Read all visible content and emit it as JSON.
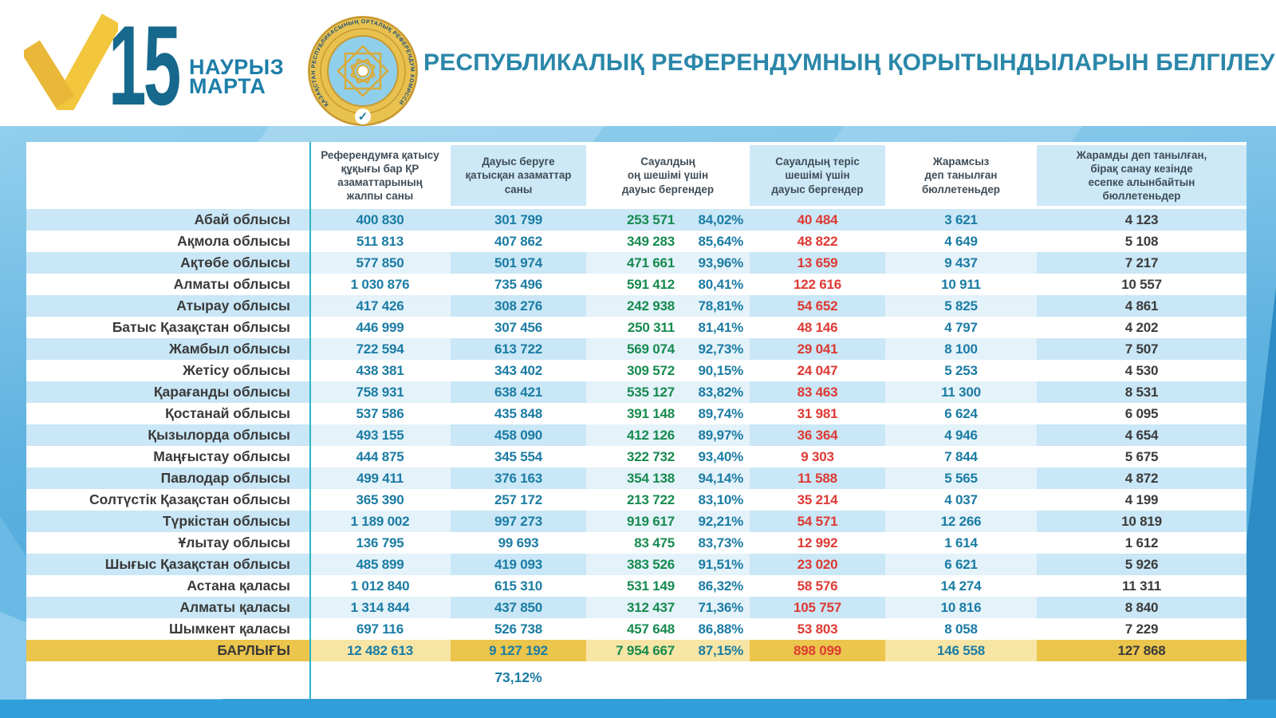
{
  "page": {
    "logo": {
      "day": "15",
      "month_kk": "НАУРЫЗ",
      "month_ru": "МАРТА"
    },
    "emblem_ring_text": "ҚАЗАҚСТАН РЕСПУБЛИКАСЫНЫҢ ОРТАЛЫҚ РЕФЕРЕНДУМ КОМИССИЯСЫ",
    "title": "РЕСПУБЛИКАЛЫҚ РЕФЕРЕНДУМНЫҢ ҚОРЫТЫНДЫЛАРЫН БЕЛГІЛЕУ"
  },
  "colors": {
    "accent_teal": "#1b7ca4",
    "positive_green": "#168a4f",
    "negative_red": "#dd3a33",
    "row_blue": "#c9e7f6",
    "row_blue_light": "#e4f2fa",
    "total_gold_dark": "#ebc54c",
    "total_gold_light": "#f7e5a5",
    "divider_cyan": "#2ab4c9",
    "page_blue": "#3f9fd6"
  },
  "table": {
    "columns": [
      "Референдумға қатысу\nқұқығы бар ҚР\nазаматтарының\nжалпы саны",
      "Дауыс беруге\nқатысқан азаматтар\nсаны",
      "Сауалдың\nоң шешімі үшін\nдауыс бергендер",
      "Сауалдың теріс\nшешімі үшін\nдауыс бергендер",
      "Жарамсыз\nдеп танылған\nбюллетеньдер",
      "Жарамды деп танылған,\nбірақ санау кезінде\nесепке алынбайтын\nбюллетеньдер"
    ],
    "rows": [
      {
        "name": "Абай облысы",
        "eligible": "400 830",
        "voted": "301 799",
        "yes": "253 571",
        "yes_pct": "84,02%",
        "no": "40 484",
        "invalid": "3 621",
        "uncounted": "4 123"
      },
      {
        "name": "Ақмола облысы",
        "eligible": "511 813",
        "voted": "407 862",
        "yes": "349 283",
        "yes_pct": "85,64%",
        "no": "48 822",
        "invalid": "4 649",
        "uncounted": "5 108"
      },
      {
        "name": "Ақтөбе облысы",
        "eligible": "577 850",
        "voted": "501 974",
        "yes": "471 661",
        "yes_pct": "93,96%",
        "no": "13 659",
        "invalid": "9 437",
        "uncounted": "7 217"
      },
      {
        "name": "Алматы облысы",
        "eligible": "1 030 876",
        "voted": "735 496",
        "yes": "591 412",
        "yes_pct": "80,41%",
        "no": "122 616",
        "invalid": "10 911",
        "uncounted": "10 557"
      },
      {
        "name": "Атырау облысы",
        "eligible": "417 426",
        "voted": "308 276",
        "yes": "242 938",
        "yes_pct": "78,81%",
        "no": "54 652",
        "invalid": "5 825",
        "uncounted": "4 861"
      },
      {
        "name": "Батыс Қазақстан облысы",
        "eligible": "446 999",
        "voted": "307 456",
        "yes": "250 311",
        "yes_pct": "81,41%",
        "no": "48 146",
        "invalid": "4 797",
        "uncounted": "4 202"
      },
      {
        "name": "Жамбыл облысы",
        "eligible": "722 594",
        "voted": "613 722",
        "yes": "569 074",
        "yes_pct": "92,73%",
        "no": "29 041",
        "invalid": "8 100",
        "uncounted": "7 507"
      },
      {
        "name": "Жетісу облысы",
        "eligible": "438 381",
        "voted": "343 402",
        "yes": "309 572",
        "yes_pct": "90,15%",
        "no": "24 047",
        "invalid": "5 253",
        "uncounted": "4 530"
      },
      {
        "name": "Қарағанды облысы",
        "eligible": "758 931",
        "voted": "638 421",
        "yes": "535 127",
        "yes_pct": "83,82%",
        "no": "83 463",
        "invalid": "11 300",
        "uncounted": "8 531"
      },
      {
        "name": "Қостанай облысы",
        "eligible": "537 586",
        "voted": "435 848",
        "yes": "391 148",
        "yes_pct": "89,74%",
        "no": "31 981",
        "invalid": "6 624",
        "uncounted": "6 095"
      },
      {
        "name": "Қызылорда облысы",
        "eligible": "493 155",
        "voted": "458 090",
        "yes": "412 126",
        "yes_pct": "89,97%",
        "no": "36 364",
        "invalid": "4 946",
        "uncounted": "4 654"
      },
      {
        "name": "Маңғыстау облысы",
        "eligible": "444 875",
        "voted": "345 554",
        "yes": "322 732",
        "yes_pct": "93,40%",
        "no": "9 303",
        "invalid": "7 844",
        "uncounted": "5 675"
      },
      {
        "name": "Павлодар облысы",
        "eligible": "499 411",
        "voted": "376 163",
        "yes": "354 138",
        "yes_pct": "94,14%",
        "no": "11 588",
        "invalid": "5 565",
        "uncounted": "4 872"
      },
      {
        "name": "Солтүстік Қазақстан облысы",
        "eligible": "365 390",
        "voted": "257 172",
        "yes": "213 722",
        "yes_pct": "83,10%",
        "no": "35 214",
        "invalid": "4 037",
        "uncounted": "4 199"
      },
      {
        "name": "Түркістан облысы",
        "eligible": "1 189 002",
        "voted": "997 273",
        "yes": "919 617",
        "yes_pct": "92,21%",
        "no": "54 571",
        "invalid": "12 266",
        "uncounted": "10 819"
      },
      {
        "name": "Ұлытау облысы",
        "eligible": "136 795",
        "voted": "99 693",
        "yes": "83 475",
        "yes_pct": "83,73%",
        "no": "12 992",
        "invalid": "1 614",
        "uncounted": "1 612"
      },
      {
        "name": "Шығыс Қазақстан облысы",
        "eligible": "485 899",
        "voted": "419 093",
        "yes": "383 526",
        "yes_pct": "91,51%",
        "no": "23 020",
        "invalid": "6 621",
        "uncounted": "5 926"
      },
      {
        "name": "Астана қаласы",
        "eligible": "1 012 840",
        "voted": "615 310",
        "yes": "531 149",
        "yes_pct": "86,32%",
        "no": "58 576",
        "invalid": "14 274",
        "uncounted": "11 311"
      },
      {
        "name": "Алматы қаласы",
        "eligible": "1 314 844",
        "voted": "437 850",
        "yes": "312 437",
        "yes_pct": "71,36%",
        "no": "105 757",
        "invalid": "10 816",
        "uncounted": "8 840"
      },
      {
        "name": "Шымкент қаласы",
        "eligible": "697 116",
        "voted": "526 738",
        "yes": "457 648",
        "yes_pct": "86,88%",
        "no": "53 803",
        "invalid": "8 058",
        "uncounted": "7 229"
      }
    ],
    "total": {
      "name": "БАРЛЫҒЫ",
      "eligible": "12 482 613",
      "voted": "9 127 192",
      "yes": "7 954 667",
      "yes_pct": "87,15%",
      "no": "898 099",
      "invalid": "146 558",
      "uncounted": "127 868"
    },
    "turnout_pct": "73,12%"
  }
}
